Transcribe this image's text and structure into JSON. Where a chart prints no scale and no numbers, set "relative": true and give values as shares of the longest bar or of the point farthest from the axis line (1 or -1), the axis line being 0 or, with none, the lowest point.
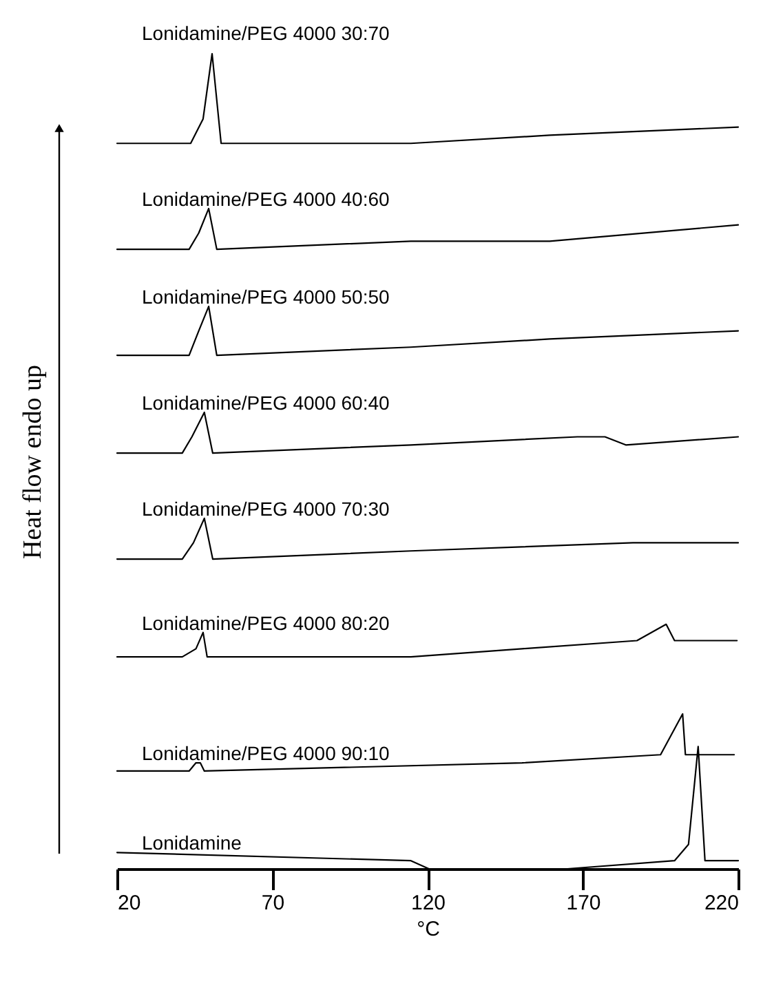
{
  "chart_data": {
    "type": "line",
    "relative": true,
    "xlabel": "°C",
    "ylabel": "Heat flow endo up",
    "xlim": [
      20,
      220
    ],
    "xticks": [
      20,
      70,
      120,
      170,
      220
    ],
    "marker": "none",
    "line_style": "solid",
    "series": [
      {
        "name": "Lonidamine/PEG 4000 30:70",
        "color": "#000000",
        "x": [
          20,
          43.7,
          47.7,
          50.6,
          53.5,
          114.6,
          159.3,
          220
        ],
        "values": [
          0.89,
          0.89,
          0.92,
          1.0,
          0.89,
          0.89,
          0.9,
          0.91
        ]
      },
      {
        "name": "Lonidamine/PEG 4000 40:60",
        "color": "#000000",
        "x": [
          20,
          43.2,
          46.3,
          49.5,
          52.1,
          114.6,
          159.3,
          220
        ],
        "values": [
          0.76,
          0.76,
          0.78,
          0.81,
          0.76,
          0.77,
          0.77,
          0.79
        ]
      },
      {
        "name": "Lonidamine/PEG 4000 50:50",
        "color": "#000000",
        "x": [
          20,
          43.2,
          46.3,
          49.5,
          52.1,
          114.6,
          159.3,
          220
        ],
        "values": [
          0.63,
          0.63,
          0.66,
          0.69,
          0.63,
          0.64,
          0.65,
          0.66
        ]
      },
      {
        "name": "Lonidamine/PEG 4000 60:40",
        "color": "#000000",
        "x": [
          20,
          41,
          44.1,
          48.1,
          50.8,
          114.6,
          168.2,
          177.1,
          183.8,
          220
        ],
        "values": [
          0.51,
          0.51,
          0.53,
          0.56,
          0.51,
          0.52,
          0.53,
          0.53,
          0.52,
          0.53
        ]
      },
      {
        "name": "Lonidamine/PEG 4000 70:30",
        "color": "#000000",
        "x": [
          20,
          41,
          44.6,
          48.1,
          50.8,
          114.6,
          186.1,
          195,
          220
        ],
        "values": [
          0.38,
          0.38,
          0.4,
          0.43,
          0.38,
          0.39,
          0.4,
          0.4,
          0.4
        ]
      },
      {
        "name": "Lonidamine/PEG 4000 80:20",
        "color": "#000000",
        "x": [
          20,
          41,
          45.4,
          47.7,
          49,
          114.6,
          150.4,
          187.4,
          196.8,
          199.5,
          219.6
        ],
        "values": [
          0.26,
          0.26,
          0.27,
          0.29,
          0.26,
          0.26,
          0.27,
          0.28,
          0.3,
          0.28,
          0.28
        ]
      },
      {
        "name": "Lonidamine/PEG 4000 90:10",
        "color": "#000000",
        "x": [
          20,
          43.2,
          45.4,
          46.8,
          48.1,
          150.4,
          195,
          202.1,
          203,
          218.7
        ],
        "values": [
          0.12,
          0.12,
          0.13,
          0.13,
          0.12,
          0.13,
          0.14,
          0.19,
          0.14,
          0.14
        ]
      },
      {
        "name": "Lonidamine",
        "color": "#000000",
        "x": [
          20,
          114.6,
          120.4,
          165,
          199.5,
          204,
          207.1,
          209.3,
          220
        ],
        "values": [
          0.02,
          0.01,
          0.0,
          0.0,
          0.01,
          0.03,
          0.15,
          0.01,
          0.01
        ]
      }
    ]
  }
}
